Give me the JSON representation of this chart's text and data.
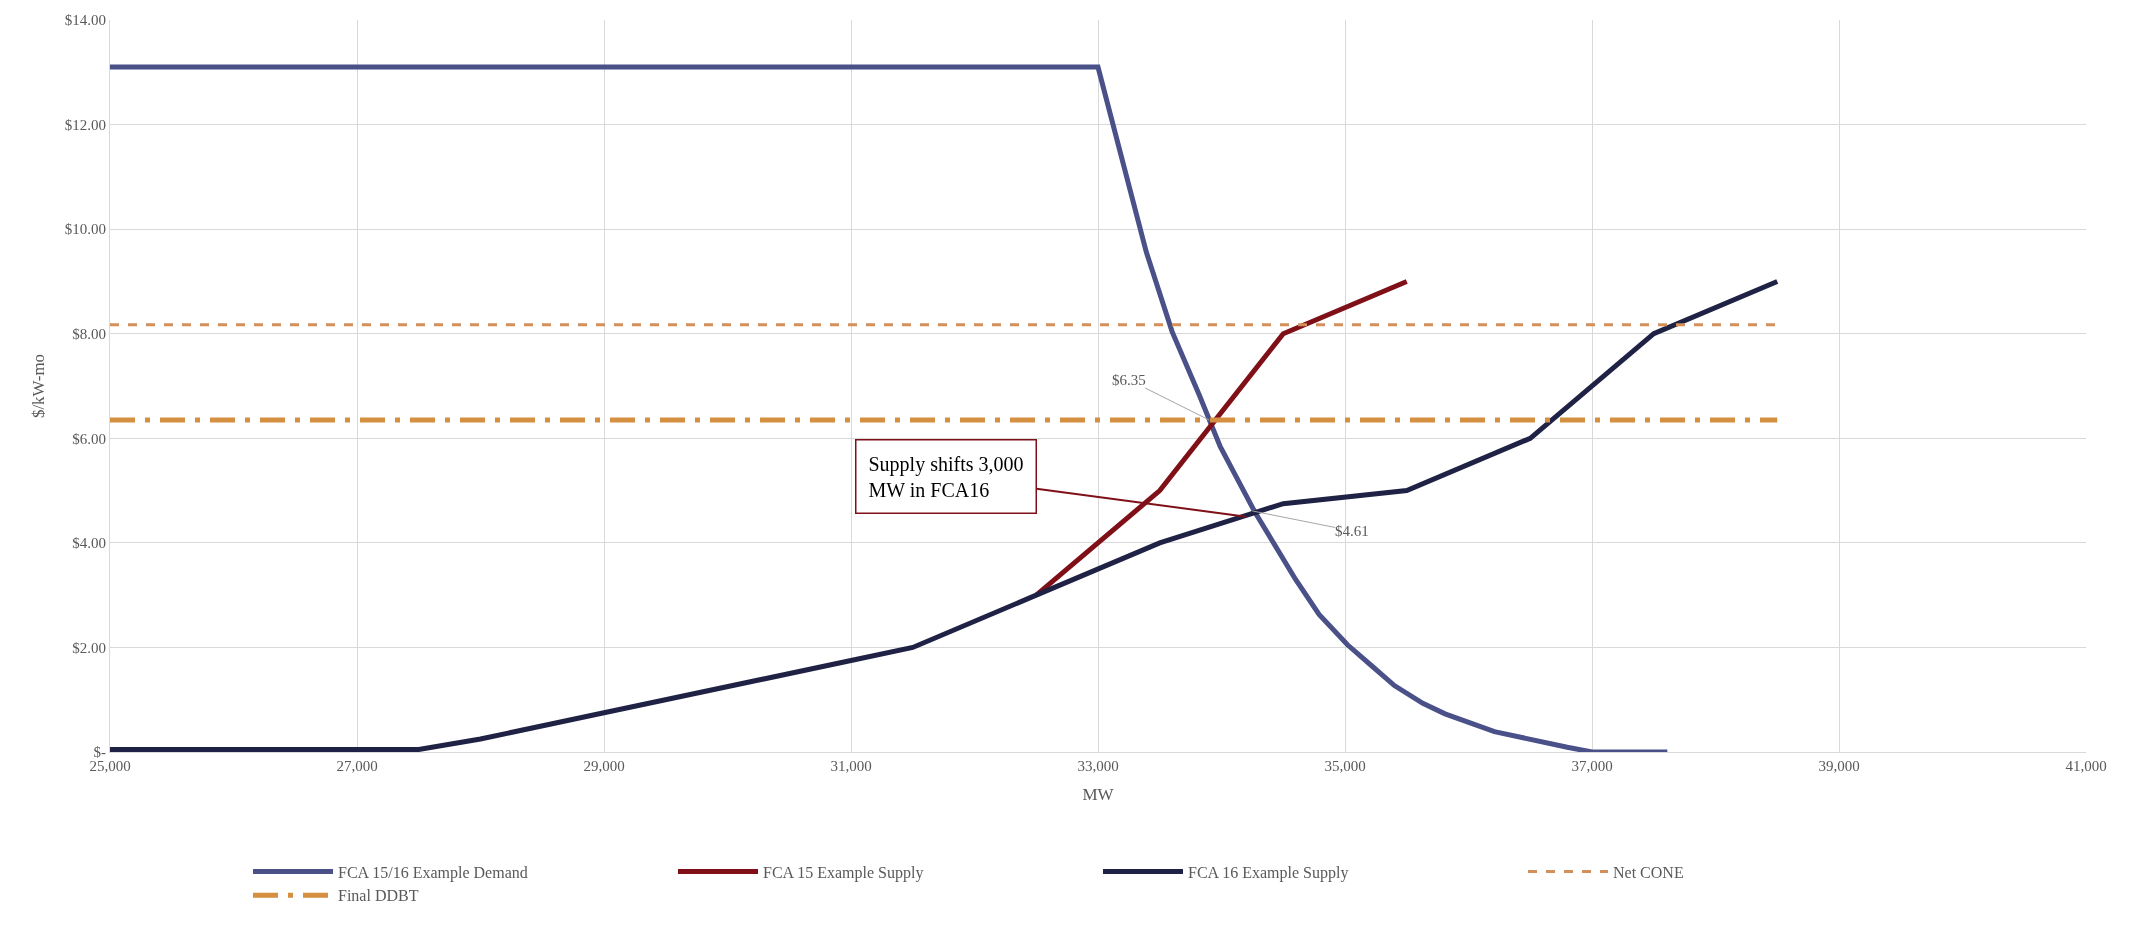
{
  "chart_data": {
    "type": "line",
    "xlabel": "MW",
    "ylabel": "$/kW-mo",
    "xlim": [
      25000,
      41000
    ],
    "xticks": [
      {
        "value": 25000,
        "label": "25,000"
      },
      {
        "value": 27000,
        "label": "27,000"
      },
      {
        "value": 29000,
        "label": "29,000"
      },
      {
        "value": 31000,
        "label": "31,000"
      },
      {
        "value": 33000,
        "label": "33,000"
      },
      {
        "value": 35000,
        "label": "35,000"
      },
      {
        "value": 37000,
        "label": "37,000"
      },
      {
        "value": 39000,
        "label": "39,000"
      },
      {
        "value": 41000,
        "label": "41,000"
      }
    ],
    "ylim": [
      0,
      14
    ],
    "yticks": [
      {
        "value": 0,
        "label": "$-"
      },
      {
        "value": 2,
        "label": "$2.00"
      },
      {
        "value": 4,
        "label": "$4.00"
      },
      {
        "value": 6,
        "label": "$6.00"
      },
      {
        "value": 8,
        "label": "$8.00"
      },
      {
        "value": 10,
        "label": "$10.00"
      },
      {
        "value": 12,
        "label": "$12.00"
      },
      {
        "value": 14,
        "label": "$14.00"
      }
    ],
    "grid": true,
    "legend": "bottom",
    "marker": "none",
    "series": [
      {
        "name": "FCA 15/16 Example Demand",
        "color": "#4a5088",
        "line_style": "solid",
        "x": [
          25000,
          33000,
          33390,
          33600,
          33820,
          33990,
          34270,
          34600,
          34790,
          35020,
          35220,
          35400,
          35630,
          35810,
          36210,
          36800,
          37000,
          37610
        ],
        "values": [
          13.1,
          13.1,
          9.57,
          8.04,
          6.83,
          5.84,
          4.59,
          3.3,
          2.63,
          2.05,
          1.64,
          1.27,
          0.93,
          0.73,
          0.39,
          0.09,
          0,
          0
        ]
      },
      {
        "name": "FCA 15 Example Supply",
        "color": "#7f1018",
        "line_style": "solid",
        "x": [
          32500,
          33500,
          34500,
          35500
        ],
        "values": [
          3,
          5,
          8,
          9
        ]
      },
      {
        "name": "FCA 16 Example Supply",
        "color": "#1f2244",
        "line_style": "solid",
        "x": [
          25000,
          27500,
          28000,
          29000,
          31000,
          31500,
          32500,
          33500,
          34500,
          35500,
          36500,
          37500,
          38500
        ],
        "values": [
          0.05,
          0.05,
          0.25,
          0.75,
          1.75,
          2,
          3,
          4,
          4.75,
          5,
          6,
          8,
          9
        ]
      },
      {
        "name": "Net CONE",
        "color": "#d4905a",
        "line_style": "dashed",
        "x": [
          25000,
          38500
        ],
        "values": [
          8.17,
          8.17
        ]
      },
      {
        "name": "Final DDBT",
        "color": "#d49040",
        "line_style": "dashdot",
        "x": [
          25000,
          38500
        ],
        "values": [
          6.35,
          6.35
        ]
      }
    ],
    "annotations": [
      {
        "text": "$6.35",
        "x": 33900,
        "y": 6.35
      },
      {
        "text": "$4.61",
        "x": 34250,
        "y": 4.61
      },
      {
        "text": "Supply shifts 3,000 MW in FCA16",
        "x": 34200,
        "y": 4.5
      }
    ]
  }
}
